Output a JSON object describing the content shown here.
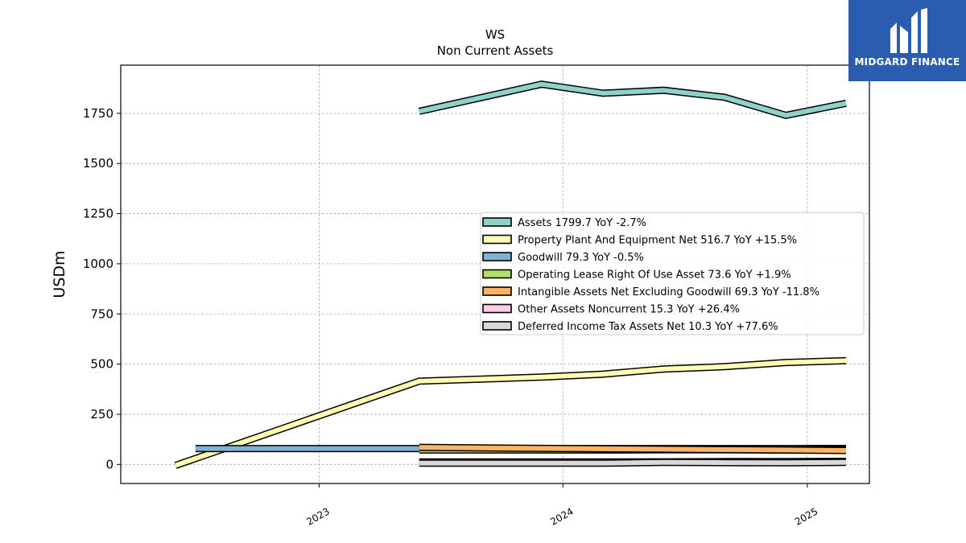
{
  "logo": {
    "text": "MIDGARD FINANCE",
    "color": "#2a5db0"
  },
  "chart_data": {
    "type": "line",
    "title": "WS",
    "subtitle": "Non Current  Assets",
    "ylabel": "USDm",
    "xlabel": "",
    "ylim": [
      -95,
      1990
    ],
    "yticks": [
      0,
      250,
      500,
      750,
      1000,
      1250,
      1500,
      1750
    ],
    "xlim": [
      "2022-03-10",
      "2025-04-04"
    ],
    "xticks": [
      {
        "label": "2023",
        "date": "2023-01-01"
      },
      {
        "label": "2024",
        "date": "2024-01-01"
      },
      {
        "label": "2025",
        "date": "2025-01-01"
      }
    ],
    "grid": true,
    "legend_position": "center-right",
    "series": [
      {
        "name": "Assets  1799.7 YoY -2.7%",
        "color": "#8dd3c7",
        "points": [
          [
            "2023-05-31",
            1760
          ],
          [
            "2023-11-30",
            1895
          ],
          [
            "2024-03-01",
            1850
          ],
          [
            "2024-05-31",
            1865
          ],
          [
            "2024-08-30",
            1830
          ],
          [
            "2024-11-30",
            1740
          ],
          [
            "2025-02-28",
            1800
          ]
        ]
      },
      {
        "name": "Property Plant And Equipment Net  516.7 YoY +15.5%",
        "color": "#ffffb3",
        "points": [
          [
            "2022-05-31",
            -5
          ],
          [
            "2023-05-31",
            415
          ],
          [
            "2023-11-30",
            435
          ],
          [
            "2024-03-01",
            450
          ],
          [
            "2024-05-31",
            475
          ],
          [
            "2024-08-30",
            487
          ],
          [
            "2024-11-30",
            508
          ],
          [
            "2025-02-28",
            517
          ]
        ]
      },
      {
        "name": "Goodwill  79.3 YoY -0.5%",
        "color": "#80b1d3",
        "points": [
          [
            "2022-06-30",
            79
          ],
          [
            "2023-05-31",
            79
          ],
          [
            "2023-11-30",
            79
          ],
          [
            "2024-03-01",
            79
          ],
          [
            "2024-05-31",
            79
          ],
          [
            "2024-08-30",
            79
          ],
          [
            "2024-11-30",
            79
          ],
          [
            "2025-02-28",
            79.3
          ]
        ]
      },
      {
        "name": "Operating Lease Right Of Use Asset  73.6 YoY +1.9%",
        "color": "#b3de69",
        "points": [
          [
            "2023-05-31",
            72
          ],
          [
            "2023-11-30",
            72
          ],
          [
            "2024-03-01",
            72
          ],
          [
            "2024-05-31",
            73
          ],
          [
            "2024-08-30",
            73
          ],
          [
            "2024-11-30",
            72
          ],
          [
            "2025-02-28",
            73.6
          ]
        ]
      },
      {
        "name": "Intangible Assets Net Excluding Goodwill  69.3 YoY -11.8%",
        "color": "#fdb462",
        "points": [
          [
            "2023-05-31",
            85
          ],
          [
            "2023-11-30",
            80
          ],
          [
            "2024-03-01",
            78
          ],
          [
            "2024-05-31",
            76
          ],
          [
            "2024-08-30",
            74
          ],
          [
            "2024-11-30",
            72
          ],
          [
            "2025-02-28",
            69.3
          ]
        ]
      },
      {
        "name": "Other Assets Noncurrent  15.3 YoY +26.4%",
        "color": "#fccde5",
        "points": [
          [
            "2023-05-31",
            12
          ],
          [
            "2023-11-30",
            12
          ],
          [
            "2024-03-01",
            12
          ],
          [
            "2024-05-31",
            13
          ],
          [
            "2024-08-30",
            14
          ],
          [
            "2024-11-30",
            14
          ],
          [
            "2025-02-28",
            15.3
          ]
        ]
      },
      {
        "name": "Deferred Income Tax Assets Net  10.3 YoY +77.6%",
        "color": "#d9d9d9",
        "points": [
          [
            "2023-05-31",
            6
          ],
          [
            "2023-11-30",
            6
          ],
          [
            "2024-03-01",
            6
          ],
          [
            "2024-05-31",
            10
          ],
          [
            "2024-08-30",
            9
          ],
          [
            "2024-11-30",
            8
          ],
          [
            "2025-02-28",
            10.3
          ]
        ]
      }
    ]
  }
}
